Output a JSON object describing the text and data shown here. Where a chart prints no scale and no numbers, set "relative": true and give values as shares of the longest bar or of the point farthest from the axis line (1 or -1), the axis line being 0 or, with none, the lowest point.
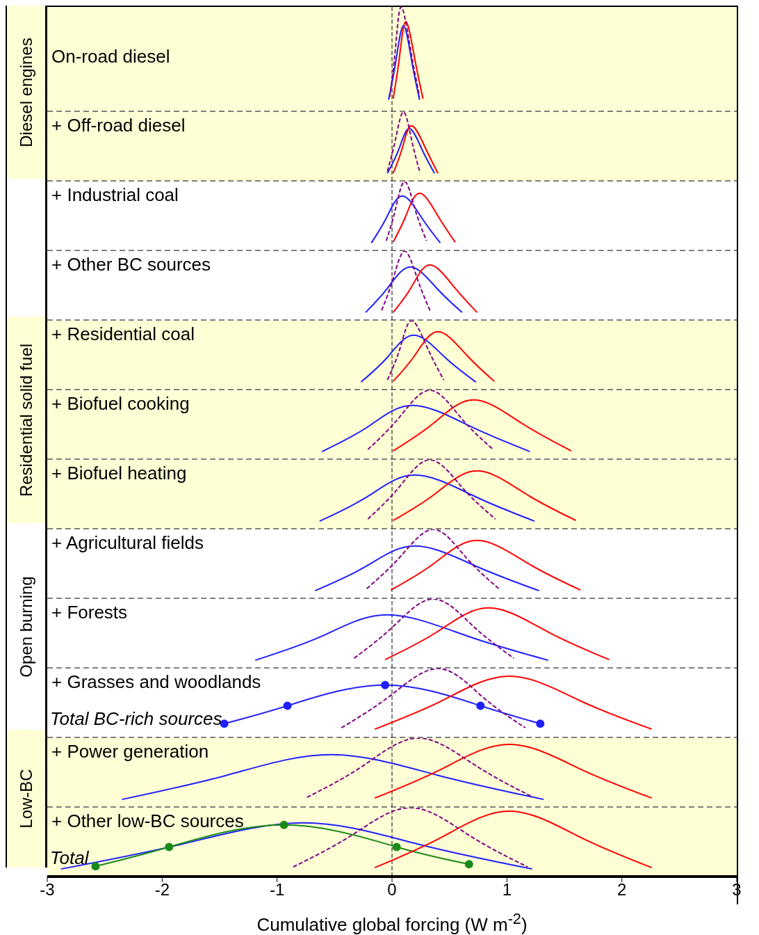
{
  "chart_data": [
    {
      "type": "line",
      "relative": true,
      "title": "On-road diesel",
      "ylabel": "Diesel engines",
      "xlim": [
        -3,
        3
      ],
      "tick_labels": false,
      "bands": [
        {
          "axis": "y",
          "from": 0,
          "to": 1,
          "color": "#ffffd6"
        }
      ],
      "ref_lines": [
        {
          "axis": "x",
          "value": 0,
          "line_style": "dashed"
        }
      ],
      "series": [
        {
          "color": "#2020ff",
          "x": [
            -0.03,
            0.035,
            0.1,
            0.17,
            0.24
          ],
          "values": [
            0.11,
            0.49,
            0.82,
            0.49,
            0.11
          ]
        },
        {
          "color": "#ff0000",
          "x": [
            0.01,
            0.065,
            0.12,
            0.195,
            0.27
          ],
          "values": [
            0.12,
            0.52,
            0.86,
            0.52,
            0.12
          ]
        },
        {
          "color": "#800080",
          "line_style": "dashed",
          "x": [
            -0.02,
            0.03,
            0.08,
            0.16,
            0.24
          ],
          "values": [
            0.14,
            0.6,
            1,
            0.6,
            0.14
          ]
        }
      ]
    },
    {
      "type": "line",
      "relative": true,
      "title": "+ Off-road diesel",
      "xlim": [
        -3,
        3
      ],
      "tick_labels": false,
      "bands": [
        {
          "axis": "y",
          "from": 0,
          "to": 1,
          "color": "#ffffd6"
        }
      ],
      "ref_lines": [
        {
          "axis": "x",
          "value": 0,
          "line_style": "dashed"
        }
      ],
      "series": [
        {
          "color": "#2020ff",
          "x": [
            -0.04,
            0.06,
            0.15,
            0.26,
            0.37
          ],
          "values": [
            0.11,
            0.46,
            0.76,
            0.46,
            0.11
          ]
        },
        {
          "color": "#ff0000",
          "x": [
            0.01,
            0.09,
            0.17,
            0.29,
            0.4
          ],
          "values": [
            0.11,
            0.48,
            0.8,
            0.48,
            0.11
          ]
        },
        {
          "color": "#800080",
          "line_style": "dashed",
          "x": [
            -0.04,
            0.03,
            0.1,
            0.17,
            0.24
          ],
          "values": [
            0.14,
            0.6,
            1,
            0.6,
            0.14
          ]
        }
      ]
    },
    {
      "type": "line",
      "relative": true,
      "title": "+ Industrial coal",
      "xlim": [
        -3,
        3
      ],
      "tick_labels": false,
      "ref_lines": [
        {
          "axis": "x",
          "value": 0,
          "line_style": "dashed"
        }
      ],
      "series": [
        {
          "color": "#2020ff",
          "x": [
            -0.18,
            -0.05,
            0.09,
            0.26,
            0.42
          ],
          "values": [
            0.11,
            0.47,
            0.79,
            0.47,
            0.11
          ]
        },
        {
          "color": "#ff0000",
          "x": [
            0.01,
            0.12,
            0.24,
            0.4,
            0.55
          ],
          "values": [
            0.12,
            0.5,
            0.83,
            0.5,
            0.12
          ]
        },
        {
          "color": "#800080",
          "line_style": "dashed",
          "x": [
            -0.05,
            0.03,
            0.11,
            0.2,
            0.3
          ],
          "values": [
            0.14,
            0.6,
            1,
            0.6,
            0.14
          ]
        }
      ]
    },
    {
      "type": "line",
      "relative": true,
      "title": "+ Other BC sources",
      "xlim": [
        -3,
        3
      ],
      "tick_labels": false,
      "ref_lines": [
        {
          "axis": "x",
          "value": 0,
          "line_style": "dashed"
        }
      ],
      "series": [
        {
          "color": "#2020ff",
          "x": [
            -0.23,
            -0.04,
            0.16,
            0.39,
            0.61
          ],
          "values": [
            0.11,
            0.46,
            0.77,
            0.46,
            0.11
          ]
        },
        {
          "color": "#ff0000",
          "x": [
            0.01,
            0.17,
            0.33,
            0.54,
            0.74
          ],
          "values": [
            0.11,
            0.48,
            0.8,
            0.48,
            0.11
          ]
        },
        {
          "color": "#800080",
          "line_style": "dashed",
          "x": [
            -0.09,
            0.01,
            0.11,
            0.22,
            0.33
          ],
          "values": [
            0.14,
            0.6,
            1,
            0.6,
            0.14
          ]
        }
      ]
    },
    {
      "type": "line",
      "relative": true,
      "title": "+ Residential coal",
      "ylabel": "Residential solid fuel",
      "xlim": [
        -3,
        3
      ],
      "tick_labels": false,
      "bands": [
        {
          "axis": "y",
          "from": 0,
          "to": 1,
          "color": "#ffffd6"
        }
      ],
      "ref_lines": [
        {
          "axis": "x",
          "value": 0,
          "line_style": "dashed"
        }
      ],
      "series": [
        {
          "color": "#2020ff",
          "x": [
            -0.27,
            -0.04,
            0.19,
            0.46,
            0.73
          ],
          "values": [
            0.11,
            0.47,
            0.79,
            0.47,
            0.11
          ]
        },
        {
          "color": "#ff0000",
          "x": [
            0.01,
            0.2,
            0.4,
            0.65,
            0.89
          ],
          "values": [
            0.12,
            0.5,
            0.84,
            0.5,
            0.12
          ]
        },
        {
          "color": "#800080",
          "line_style": "dashed",
          "x": [
            -0.04,
            0.07,
            0.17,
            0.31,
            0.45
          ],
          "values": [
            0.14,
            0.6,
            1,
            0.6,
            0.14
          ]
        }
      ]
    },
    {
      "type": "line",
      "relative": true,
      "title": "+ Biofuel cooking",
      "xlim": [
        -3,
        3
      ],
      "tick_labels": false,
      "bands": [
        {
          "axis": "y",
          "from": 0,
          "to": 1,
          "color": "#ffffd6"
        }
      ],
      "ref_lines": [
        {
          "axis": "x",
          "value": 0,
          "line_style": "dashed"
        }
      ],
      "series": [
        {
          "color": "#2020ff",
          "x": [
            -0.61,
            -0.21,
            0.18,
            0.69,
            1.2
          ],
          "values": [
            0.11,
            0.47,
            0.78,
            0.47,
            0.11
          ]
        },
        {
          "color": "#ff0000",
          "x": [
            0.01,
            0.36,
            0.71,
            1.13,
            1.56
          ],
          "values": [
            0.12,
            0.52,
            0.86,
            0.52,
            0.12
          ]
        },
        {
          "color": "#800080",
          "line_style": "dashed",
          "x": [
            -0.21,
            0.06,
            0.33,
            0.6,
            0.88
          ],
          "values": [
            0.14,
            0.6,
            1,
            0.6,
            0.14
          ]
        }
      ]
    },
    {
      "type": "line",
      "relative": true,
      "title": "+ Biofuel heating",
      "xlim": [
        -3,
        3
      ],
      "tick_labels": false,
      "bands": [
        {
          "axis": "y",
          "from": 0,
          "to": 1,
          "color": "#ffffd6"
        }
      ],
      "ref_lines": [
        {
          "axis": "x",
          "value": 0,
          "line_style": "dashed"
        }
      ],
      "series": [
        {
          "color": "#2020ff",
          "x": [
            -0.63,
            -0.21,
            0.2,
            0.72,
            1.24
          ],
          "values": [
            0.11,
            0.47,
            0.78,
            0.47,
            0.11
          ]
        },
        {
          "color": "#ff0000",
          "x": [
            0.01,
            0.37,
            0.74,
            1.17,
            1.6
          ],
          "values": [
            0.12,
            0.5,
            0.84,
            0.5,
            0.12
          ]
        },
        {
          "color": "#800080",
          "line_style": "dashed",
          "x": [
            -0.21,
            0.06,
            0.33,
            0.61,
            0.9
          ],
          "values": [
            0.14,
            0.6,
            1,
            0.6,
            0.14
          ]
        }
      ]
    },
    {
      "type": "line",
      "relative": true,
      "title": "+ Agricultural fields",
      "ylabel": "Open burning",
      "xlim": [
        -3,
        3
      ],
      "tick_labels": false,
      "ref_lines": [
        {
          "axis": "x",
          "value": 0,
          "line_style": "dashed"
        }
      ],
      "series": [
        {
          "color": "#2020ff",
          "x": [
            -0.67,
            -0.23,
            0.2,
            0.74,
            1.28
          ],
          "values": [
            0.11,
            0.46,
            0.76,
            0.46,
            0.11
          ]
        },
        {
          "color": "#ff0000",
          "x": [
            -0.01,
            0.36,
            0.74,
            1.19,
            1.64
          ],
          "values": [
            0.12,
            0.5,
            0.84,
            0.5,
            0.12
          ]
        },
        {
          "color": "#800080",
          "line_style": "dashed",
          "x": [
            -0.22,
            0.07,
            0.36,
            0.64,
            0.93
          ],
          "values": [
            0.14,
            0.6,
            1,
            0.6,
            0.14
          ]
        }
      ]
    },
    {
      "type": "line",
      "relative": true,
      "title": "+ Forests",
      "xlim": [
        -3,
        3
      ],
      "tick_labels": false,
      "ref_lines": [
        {
          "axis": "x",
          "value": 0,
          "line_style": "dashed"
        }
      ],
      "series": [
        {
          "color": "#2020ff",
          "x": [
            -1.19,
            -0.61,
            -0.04,
            0.66,
            1.36
          ],
          "values": [
            0.11,
            0.46,
            0.77,
            0.46,
            0.11
          ]
        },
        {
          "color": "#ff0000",
          "x": [
            -0.06,
            0.39,
            0.84,
            1.36,
            1.89
          ],
          "values": [
            0.12,
            0.52,
            0.87,
            0.52,
            0.12
          ]
        },
        {
          "color": "#800080",
          "line_style": "dashed",
          "x": [
            -0.33,
            0.01,
            0.36,
            0.71,
            1.06
          ],
          "values": [
            0.14,
            0.6,
            1,
            0.6,
            0.14
          ]
        }
      ]
    },
    {
      "type": "line",
      "relative": true,
      "title": "+ Grasses and woodlands",
      "annotations": [
        "Total BC-rich sources"
      ],
      "xlim": [
        -3,
        3
      ],
      "tick_labels": false,
      "ref_lines": [
        {
          "axis": "x",
          "value": 0,
          "line_style": "dashed"
        }
      ],
      "series": [
        {
          "color": "#2020ff",
          "marker": "circle",
          "x": [
            -1.46,
            -0.91,
            -0.06,
            0.77,
            1.29
          ],
          "values": [
            0.2,
            0.46,
            0.76,
            0.46,
            0.2
          ]
        },
        {
          "color": "#ff0000",
          "x": [
            -0.15,
            0.43,
            1.02,
            1.64,
            2.26
          ],
          "values": [
            0.12,
            0.53,
            0.89,
            0.53,
            0.12
          ]
        },
        {
          "color": "#800080",
          "line_style": "dashed",
          "x": [
            -0.44,
            -0.02,
            0.4,
            0.78,
            1.16
          ],
          "values": [
            0.14,
            0.6,
            1,
            0.6,
            0.14
          ]
        }
      ]
    },
    {
      "type": "line",
      "relative": true,
      "title": "+ Power generation",
      "ylabel": "Low-BC",
      "xlim": [
        -3,
        3
      ],
      "tick_labels": false,
      "bands": [
        {
          "axis": "y",
          "from": 0,
          "to": 1,
          "color": "#ffffd6"
        }
      ],
      "ref_lines": [
        {
          "axis": "x",
          "value": 0,
          "line_style": "dashed"
        }
      ],
      "series": [
        {
          "color": "#2020ff",
          "x": [
            -2.35,
            -1.44,
            -0.53,
            0.4,
            1.32
          ],
          "values": [
            0.11,
            0.46,
            0.76,
            0.46,
            0.11
          ]
        },
        {
          "color": "#ff0000",
          "x": [
            -0.15,
            0.43,
            1.02,
            1.64,
            2.26
          ],
          "values": [
            0.13,
            0.55,
            0.91,
            0.55,
            0.13
          ]
        },
        {
          "color": "#800080",
          "line_style": "dashed",
          "x": [
            -0.74,
            -0.25,
            0.23,
            0.73,
            1.23
          ],
          "values": [
            0.14,
            0.6,
            1,
            0.6,
            0.14
          ]
        }
      ]
    },
    {
      "type": "line",
      "relative": true,
      "title": "+ Other low-BC sources",
      "annotations": [
        "Total"
      ],
      "xlabel": "Cumulative global forcing (W m$^{-2}$)",
      "xlim": [
        -3,
        3
      ],
      "xticks": [
        -3,
        -2,
        -1,
        0,
        1,
        2,
        3
      ],
      "tick_labels": "x",
      "bands": [
        {
          "axis": "y",
          "from": 0,
          "to": 1,
          "color": "#ffffd6"
        }
      ],
      "ref_lines": [
        {
          "axis": "x",
          "value": 0,
          "line_style": "dashed"
        }
      ],
      "series": [
        {
          "color": "#2020ff",
          "x": [
            -2.88,
            -1.83,
            -0.77,
            0.23,
            1.22
          ],
          "values": [
            0.11,
            0.47,
            0.78,
            0.47,
            0.11
          ]
        },
        {
          "color": "#1a8a1a",
          "marker": "circle",
          "x": [
            -2.58,
            -1.94,
            -0.94,
            0.04,
            0.67
          ],
          "values": [
            0.15,
            0.43,
            0.75,
            0.43,
            0.18
          ]
        },
        {
          "color": "#ff0000",
          "x": [
            -0.15,
            0.43,
            1.02,
            1.64,
            2.26
          ],
          "values": [
            0.13,
            0.57,
            0.95,
            0.57,
            0.13
          ]
        },
        {
          "color": "#800080",
          "line_style": "dashed",
          "x": [
            -0.86,
            -0.35,
            0.16,
            0.67,
            1.18
          ],
          "values": [
            0.14,
            0.6,
            1,
            0.6,
            0.14
          ]
        }
      ]
    }
  ]
}
